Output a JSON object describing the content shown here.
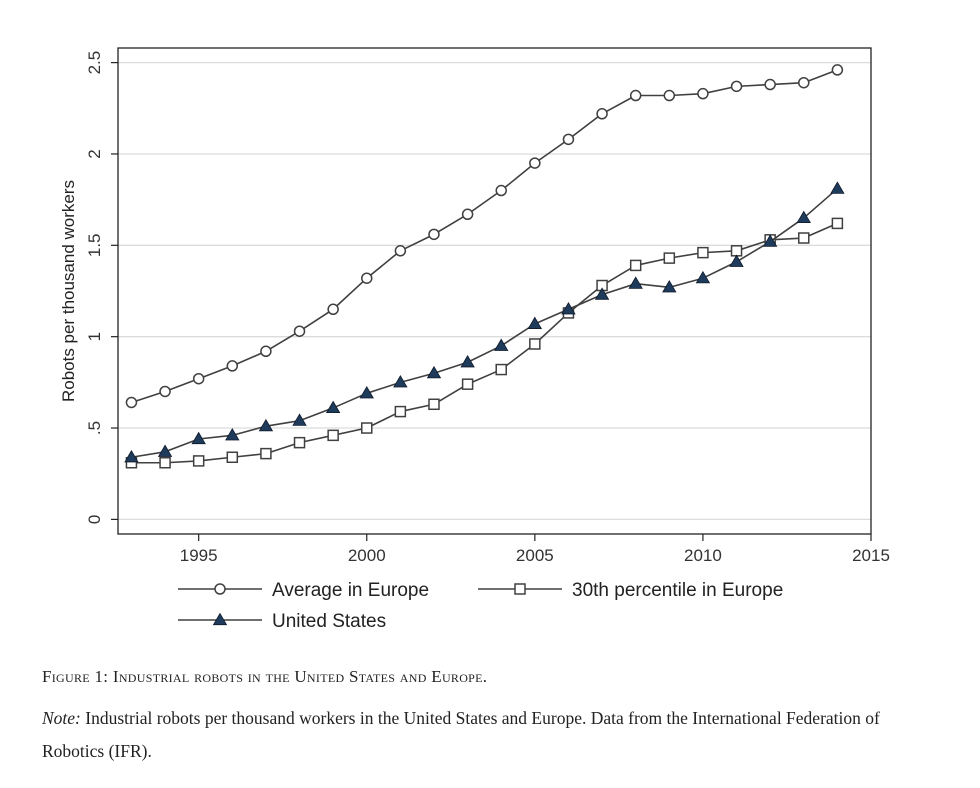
{
  "chart_data": {
    "type": "line",
    "title": "",
    "xlabel": "",
    "ylabel": "Robots per thousand workers",
    "xlim": [
      1992.6,
      2015
    ],
    "ylim": [
      -0.08,
      2.58
    ],
    "x_ticks": [
      1995,
      2000,
      2005,
      2010,
      2015
    ],
    "x_tick_labels": [
      "1995",
      "2000",
      "2005",
      "2010",
      "2015"
    ],
    "y_ticks": [
      0,
      0.5,
      1,
      1.5,
      2,
      2.5
    ],
    "y_tick_labels": [
      "0",
      ".5",
      "1",
      "1.5",
      "2",
      "2.5"
    ],
    "grid": true,
    "legend_position": "bottom",
    "x": [
      1993,
      1994,
      1995,
      1996,
      1997,
      1998,
      1999,
      2000,
      2001,
      2002,
      2003,
      2004,
      2005,
      2006,
      2007,
      2008,
      2009,
      2010,
      2011,
      2012,
      2013,
      2014
    ],
    "series": [
      {
        "name": "Average in Europe",
        "marker": "circle",
        "values": [
          0.64,
          0.7,
          0.77,
          0.84,
          0.92,
          1.03,
          1.15,
          1.32,
          1.47,
          1.56,
          1.67,
          1.8,
          1.95,
          2.08,
          2.22,
          2.32,
          2.32,
          2.33,
          2.37,
          2.38,
          2.39,
          2.46
        ]
      },
      {
        "name": "30th percentile in Europe",
        "marker": "square",
        "values": [
          0.31,
          0.31,
          0.32,
          0.34,
          0.36,
          0.42,
          0.46,
          0.5,
          0.59,
          0.63,
          0.74,
          0.82,
          0.96,
          1.13,
          1.28,
          1.39,
          1.43,
          1.46,
          1.47,
          1.53,
          1.54,
          1.62
        ]
      },
      {
        "name": "United States",
        "marker": "triangle",
        "values": [
          0.34,
          0.37,
          0.44,
          0.46,
          0.51,
          0.54,
          0.61,
          0.69,
          0.75,
          0.8,
          0.86,
          0.95,
          1.07,
          1.15,
          1.23,
          1.29,
          1.27,
          1.32,
          1.41,
          1.52,
          1.65,
          1.81
        ]
      }
    ]
  },
  "colors": {
    "line": "#404040",
    "marker_fill_open": "#ffffff",
    "triangle_fill": "#1f3b5c",
    "grid": "#dcdcdc",
    "frame": "#222222"
  },
  "caption": {
    "figure_label": "Figure 1:",
    "figure_title": "Industrial robots in the United States and Europe.",
    "note_label": "Note:",
    "note_text": "Industrial robots per thousand workers in the United States and Europe. Data from the International Federation of Robotics (IFR)."
  }
}
